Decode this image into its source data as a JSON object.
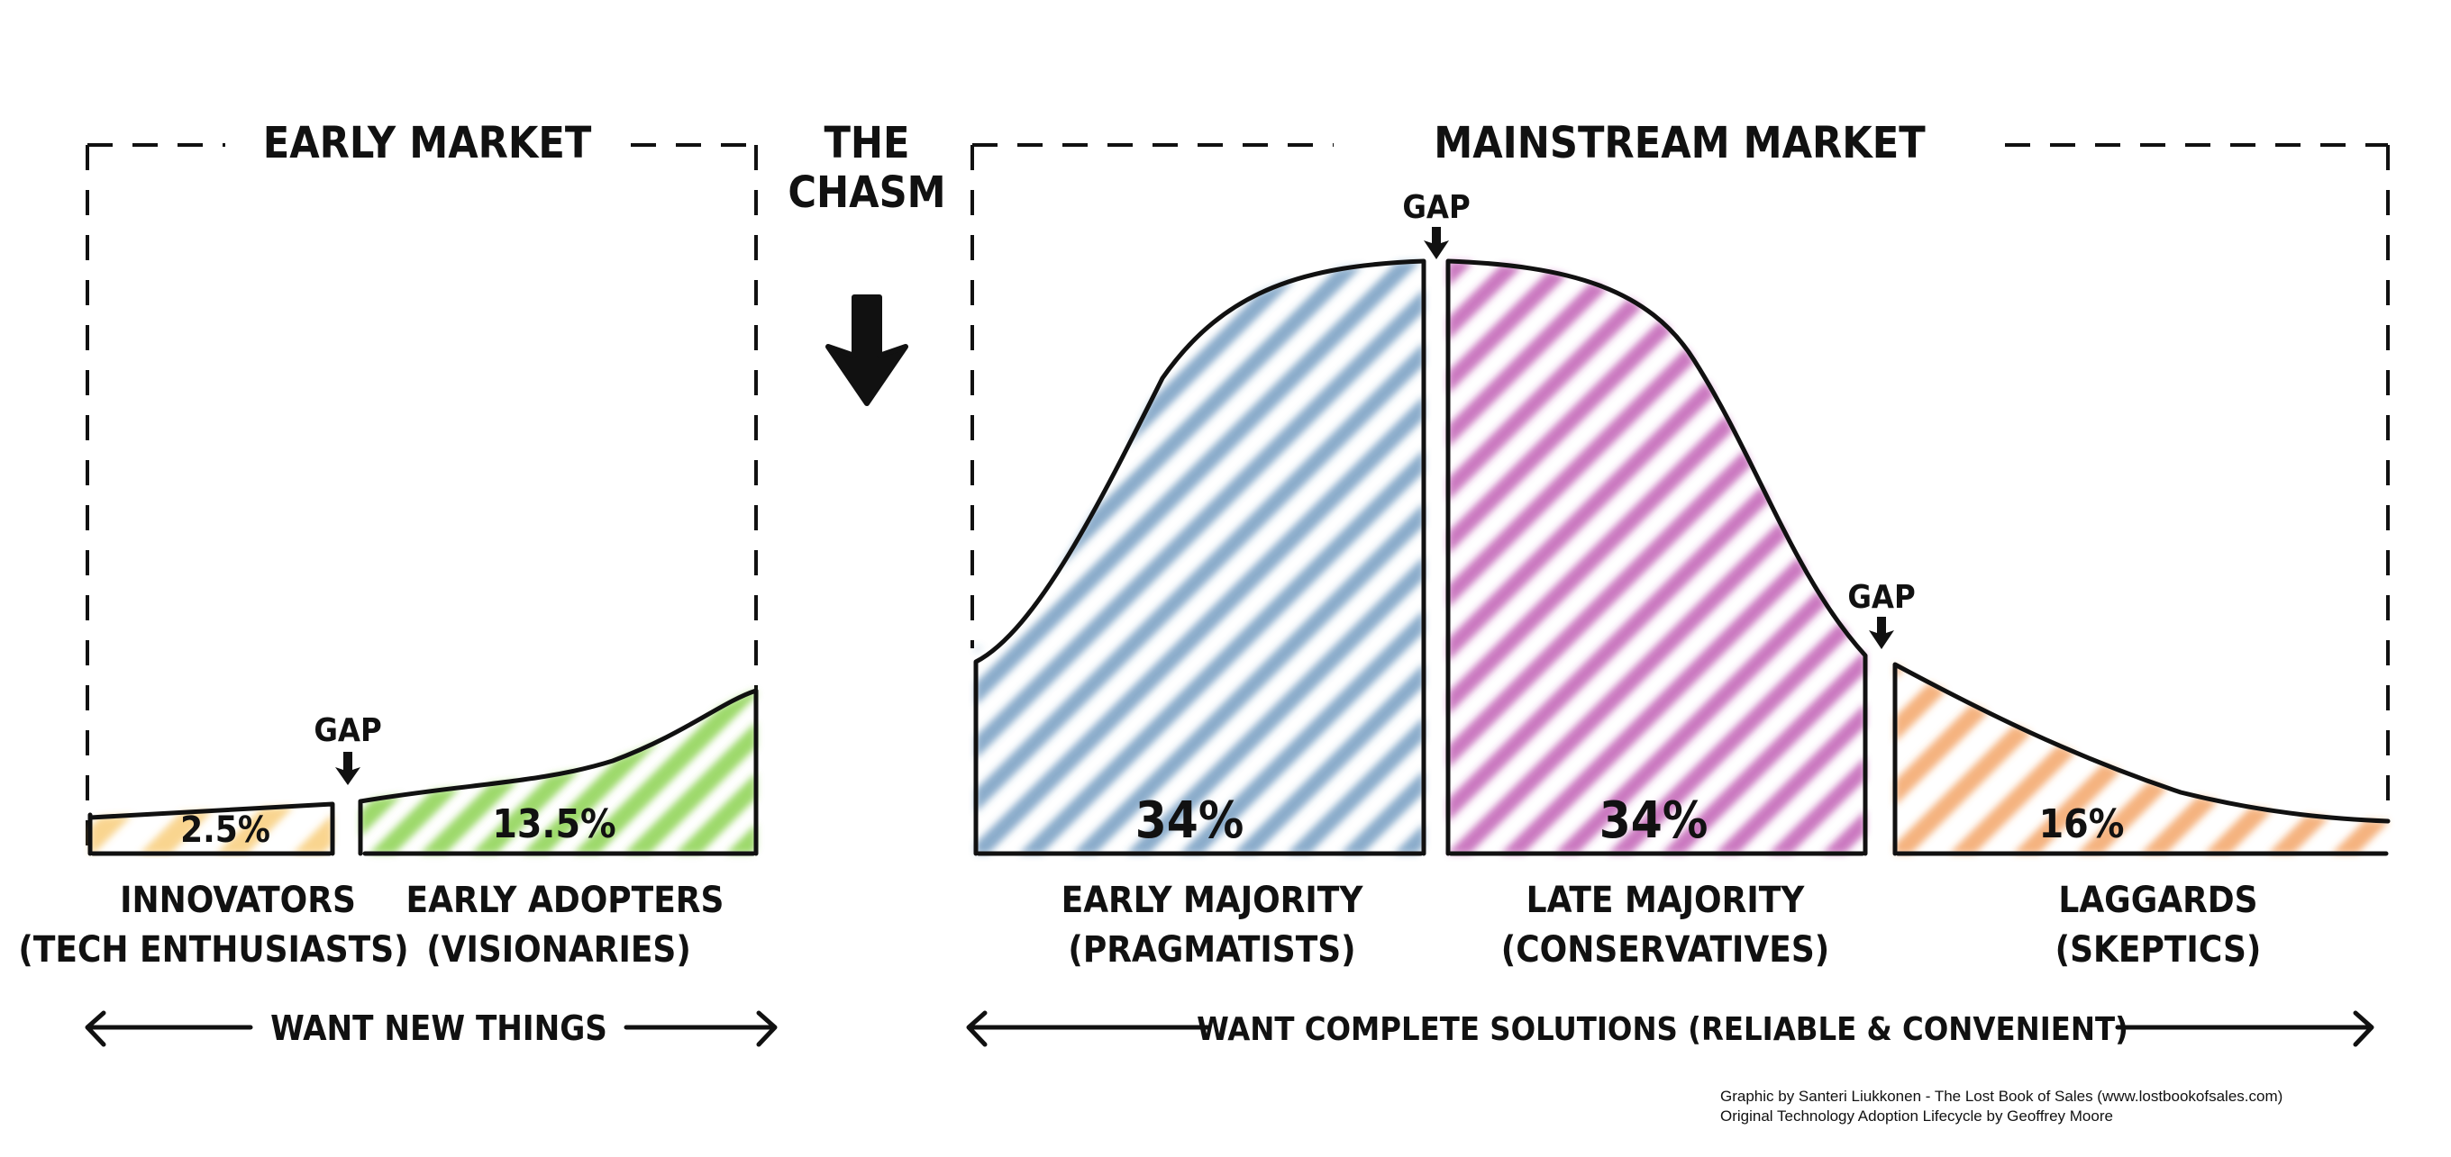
{
  "titles": {
    "early_market": "EARLY MARKET",
    "chasm_line1": "THE",
    "chasm_line2": "CHASM",
    "mainstream_market": "MAINSTREAM MARKET"
  },
  "gap_label": "GAP",
  "segments": [
    {
      "name": "INNOVATORS",
      "subtitle": "(TECH ENTHUSIASTS)",
      "percent": "2.5%",
      "color": "#f5b942"
    },
    {
      "name": "EARLY ADOPTERS",
      "subtitle": "(VISIONARIES)",
      "percent": "13.5%",
      "color": "#7ccc3a"
    },
    {
      "name": "EARLY MAJORITY",
      "subtitle": "(PRAGMATISTS)",
      "percent": "34%",
      "color": "#3c74a8"
    },
    {
      "name": "LATE MAJORITY",
      "subtitle": "(CONSERVATIVES)",
      "percent": "34%",
      "color": "#b0329e"
    },
    {
      "name": "LAGGARDS",
      "subtitle": "(SKEPTICS)",
      "percent": "16%",
      "color": "#f08a3c"
    }
  ],
  "arrows": {
    "left": "WANT NEW THINGS",
    "right": "WANT COMPLETE SOLUTIONS (RELIABLE & CONVENIENT)"
  },
  "credits": {
    "line1": "Graphic by Santeri Liukkonen - The Lost Book of Sales (www.lostbookofsales.com)",
    "line2": "Original Technology Adoption Lifecycle by Geoffrey Moore"
  }
}
